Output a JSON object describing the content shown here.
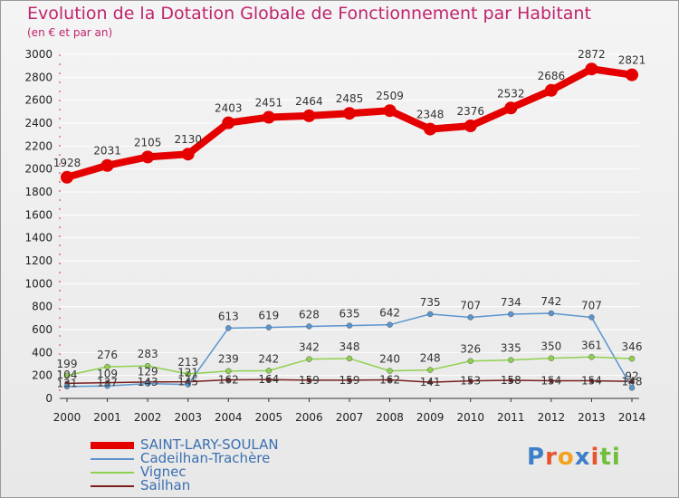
{
  "header": {
    "title": "Evolution de la Dotation Globale de Fonctionnement par Habitant",
    "subtitle": "(en € et par an)"
  },
  "logo": {
    "text": "Proxiti",
    "letter_colors": [
      "#3d7fc8",
      "#e8542c",
      "#f2a21c",
      "#3d7fc8",
      "#e8542c",
      "#6fbf3a",
      "#6fbf3a"
    ]
  },
  "chart_data": {
    "type": "line",
    "title": "Evolution de la Dotation Globale de Fonctionnement par Habitant",
    "subtitle": "(en € et par an)",
    "x": [
      2000,
      2001,
      2002,
      2003,
      2004,
      2005,
      2006,
      2007,
      2008,
      2009,
      2010,
      2011,
      2012,
      2013,
      2014
    ],
    "ylim": [
      0,
      3000
    ],
    "yticks": [
      0,
      200,
      400,
      600,
      800,
      1000,
      1200,
      1400,
      1600,
      1800,
      2000,
      2200,
      2400,
      2600,
      2800,
      3000
    ],
    "grid": true,
    "legend_position": "bottom-left",
    "series": [
      {
        "name": "SAINT-LARY-SOULAN",
        "color": "#e50000",
        "values": [
          1928,
          2031,
          2105,
          2130,
          2403,
          2451,
          2464,
          2485,
          2509,
          2348,
          2376,
          2532,
          2686,
          2872,
          2821
        ],
        "labels": [
          "1928",
          "2031",
          "2105",
          "2130",
          "2403",
          "2451",
          "2464",
          "2485",
          "2509",
          "2348",
          "2376",
          "2532",
          "2686",
          "2872",
          "2821"
        ]
      },
      {
        "name": "Cadeilhan-Trachère",
        "color": "#5a95cf",
        "values": [
          104,
          109,
          129,
          121,
          613,
          619,
          628,
          635,
          642,
          735,
          707,
          734,
          742,
          707,
          92
        ],
        "labels": [
          "104",
          "109",
          "129",
          "121",
          "613",
          "619",
          "628",
          "635",
          "642",
          "735",
          "707",
          "734",
          "742",
          "707",
          "92"
        ]
      },
      {
        "name": "Vignec",
        "color": "#8fd14f",
        "values": [
          199,
          276,
          283,
          213,
          239,
          242,
          342,
          348,
          240,
          248,
          326,
          335,
          350,
          361,
          346
        ],
        "labels": [
          "199",
          "276",
          "283",
          "213",
          "239",
          "242",
          "342",
          "348",
          "240",
          "248",
          "326",
          "335",
          "350",
          "361",
          "346"
        ]
      },
      {
        "name": "Sailhan",
        "color": "#7a1e1e",
        "values": [
          131,
          137,
          143,
          145,
          162,
          164,
          159,
          159,
          162,
          141,
          153,
          158,
          154,
          154,
          148
        ],
        "labels": [
          "131",
          "137",
          "143",
          "145",
          "162",
          "164",
          "159",
          "159",
          "162",
          "141",
          "153",
          "158",
          "154",
          "154",
          "148"
        ]
      }
    ]
  }
}
